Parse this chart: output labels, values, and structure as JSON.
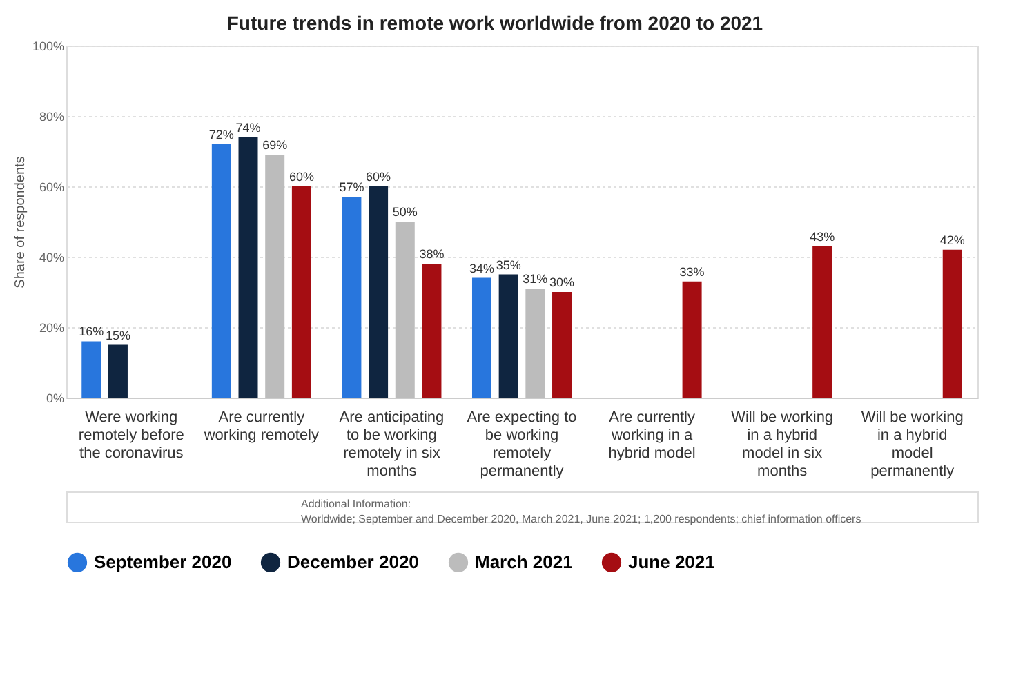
{
  "chart_data": {
    "type": "bar",
    "title": "Future trends in remote work worldwide from 2020 to 2021",
    "ylabel": "Share of respondents",
    "categories": [
      "Were working remotely before the coronavirus",
      "Are currently working remotely",
      "Are anticipating to be working remotely in six months",
      "Are expecting to be working remotely permanently",
      "Are currently working in a hybrid model",
      "Will be working in a hybrid model in six months",
      "Will be working in a hybrid model permanently"
    ],
    "series": [
      {
        "name": "September 2020",
        "color": "#2876dd",
        "values": [
          16,
          72,
          57,
          34,
          null,
          null,
          null
        ],
        "value_labels": [
          "16%",
          "72%",
          "57%",
          "34%",
          null,
          null,
          null
        ]
      },
      {
        "name": "December 2020",
        "color": "#0f2540",
        "values": [
          15,
          74,
          60,
          35,
          null,
          null,
          null
        ],
        "value_labels": [
          "15%",
          "74%",
          "60%",
          "35%",
          null,
          null,
          null
        ]
      },
      {
        "name": "March 2021",
        "color": "#bcbcbc",
        "values": [
          null,
          69,
          50,
          31,
          null,
          null,
          null
        ],
        "value_labels": [
          null,
          "69%",
          "50%",
          "31%",
          null,
          null,
          null
        ]
      },
      {
        "name": "June 2021",
        "color": "#a50d12",
        "values": [
          null,
          60,
          38,
          30,
          33,
          43,
          42
        ],
        "value_labels": [
          null,
          "60%",
          "38%",
          "30%",
          "33%",
          "43%",
          "42%"
        ]
      }
    ],
    "ylim": [
      0,
      100
    ],
    "yticks": [
      {
        "value": 0,
        "label": "0%"
      },
      {
        "value": 20,
        "label": "20%"
      },
      {
        "value": 40,
        "label": "40%"
      },
      {
        "value": 60,
        "label": "60%"
      },
      {
        "value": 80,
        "label": "80%"
      },
      {
        "value": 100,
        "label": "100%"
      }
    ],
    "grid": "y",
    "legend": "bottom",
    "annotations": [
      "Additional Information:",
      "Worldwide; September and December 2020, March 2021, June 2021; 1,200 respondents; chief information officers"
    ]
  }
}
